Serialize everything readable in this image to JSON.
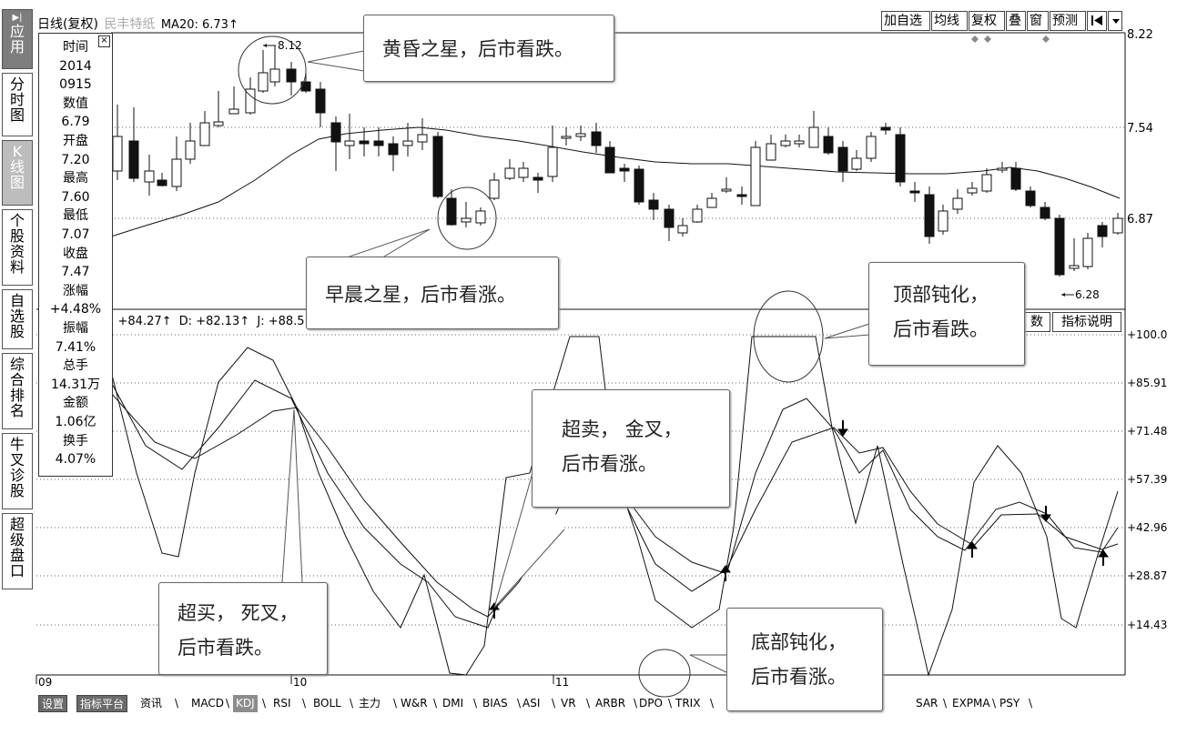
{
  "header": {
    "period": "日线(复权)",
    "stock_name": "民丰特纸",
    "ma_indicator": "MA20: 6.73",
    "ma_arrow": "↑"
  },
  "toolbar": {
    "buttons": [
      "加自选",
      "均线",
      "复权",
      "叠",
      "窗",
      "预测"
    ],
    "nav_icon": "jump-to-start-icon",
    "dropdown_icon": "chevron-down-icon"
  },
  "left_nav": [
    {
      "label": "应用",
      "icon": "play-icon"
    },
    {
      "label": "分时图"
    },
    {
      "label": "K线图"
    },
    {
      "label": "个股资料"
    },
    {
      "label": "自选股"
    },
    {
      "label": "综合排名"
    },
    {
      "label": "牛叉诊股"
    },
    {
      "label": "超级盘口"
    }
  ],
  "info_panel": {
    "close_icon": "close-icon",
    "rows": [
      "时间",
      "2014",
      "0915",
      "数值",
      "6.79",
      "开盘",
      "7.20",
      "最高",
      "7.60",
      "最低",
      "7.07",
      "收盘",
      "7.47",
      "涨幅",
      "+4.48%",
      "振幅",
      "7.41%",
      "总手",
      "14.31万",
      "金额",
      "1.06亿",
      "换手",
      "4.07%"
    ]
  },
  "kdj_header": {
    "k": ": +84.27",
    "k_arrow": "↑",
    "d": "D: +82.13",
    "d_arrow": "↑",
    "j": "J: +88.5"
  },
  "indicator_buttons": {
    "param": "数",
    "help": "指标说明"
  },
  "price_axis": [
    "8.22",
    "7.54",
    "6.87"
  ],
  "kdj_axis": [
    "+100.0",
    "+85.91",
    "+71.48",
    "+57.39",
    "+42.96",
    "+28.87",
    "+14.43"
  ],
  "time_axis": [
    "09",
    "10",
    "11"
  ],
  "price_marks": {
    "high": "8.12",
    "low": "6.28"
  },
  "callouts": {
    "evening_star": "黄昏之星，后市看跌。",
    "morning_star": "早晨之星，后市看涨。",
    "top_passivation": [
      "顶部钝化，",
      "后市看跌。"
    ],
    "oversold_golden": [
      "超卖， 金叉，",
      "后市看涨。"
    ],
    "overbought_death": [
      "超买， 死叉，",
      "后市看跌。"
    ],
    "bottom_passivation": [
      "底部钝化，",
      "后市看涨。"
    ]
  },
  "tabs": [
    "设置",
    "指标平台",
    "资讯",
    "MACD",
    "KDJ",
    "RSI",
    "BOLL",
    "主力",
    "W&R",
    "DMI",
    "BIAS",
    "ASI",
    "VR",
    "ARBR",
    "DPO",
    "TRIX",
    "SAR",
    "EXPMA",
    "PSY"
  ],
  "colors": {
    "background": "#ffffff",
    "line": "#111111",
    "grid": "#555555",
    "nav_active": "#7d7d7d"
  }
}
